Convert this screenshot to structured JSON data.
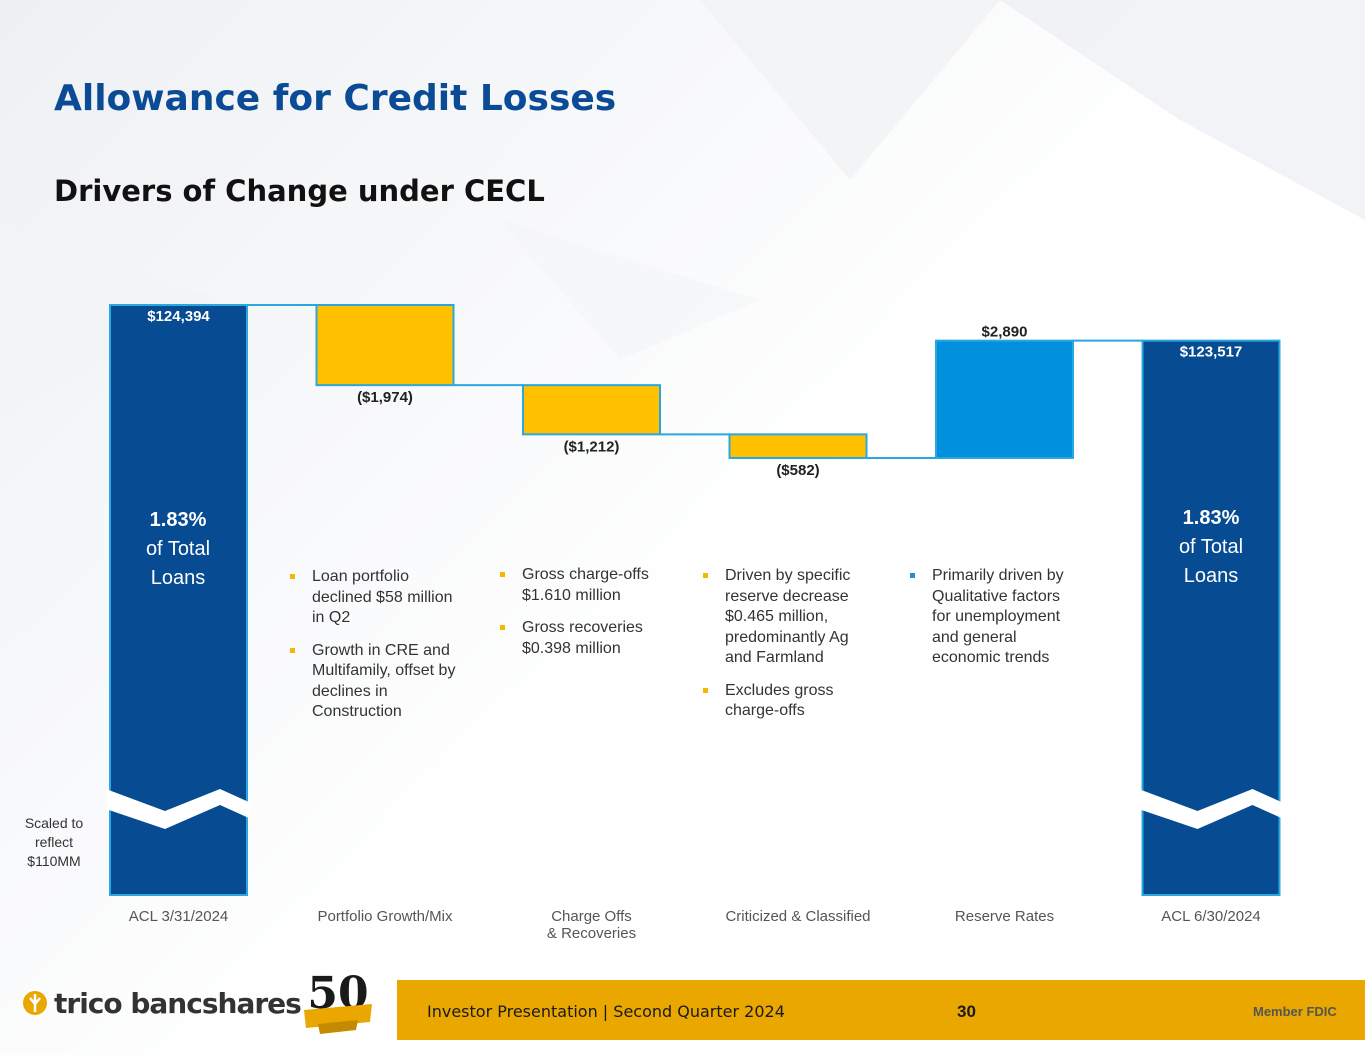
{
  "title": "Allowance for Credit Losses",
  "subtitle": "Drivers of Change under CECL",
  "scaled_note": [
    "Scaled to",
    "reflect",
    "$110MM"
  ],
  "start_pct": {
    "value": "1.83%",
    "line1": "of Total",
    "line2": "Loans"
  },
  "end_pct": {
    "value": "1.83%",
    "line1": "of Total",
    "line2": "Loans"
  },
  "bullets": {
    "portfolio": [
      "Loan portfolio declined $58 million in Q2",
      "Growth in CRE and Multifamily, offset by declines in Construction"
    ],
    "chargeoffs": [
      "Gross charge-offs $1.610 million",
      "Gross recoveries $0.398 million"
    ],
    "criticized": [
      "Driven by specific reserve decrease $0.465 million, predominantly Ag and Farmland",
      "Excludes gross charge-offs"
    ],
    "reserve": [
      "Primarily driven by Qualitative factors for unemployment and general economic trends"
    ]
  },
  "chart_data": {
    "type": "bar",
    "subtype": "waterfall",
    "categories": [
      "ACL  3/31/2024",
      "Portfolio Growth/Mix",
      "Charge Offs\n& Recoveries",
      "Criticized & Classified",
      "Reserve Rates",
      "ACL 6/30/2024"
    ],
    "values": [
      124394,
      -1974,
      -1212,
      -582,
      2890,
      123517
    ],
    "kinds": [
      "total",
      "change",
      "change",
      "change",
      "change",
      "total"
    ],
    "data_labels": [
      "$124,394",
      "($1,974)",
      "($1,212)",
      "($582)",
      "$2,890",
      "$123,517"
    ],
    "axis_break": "Scaled to reflect $110MM",
    "colors": {
      "total": "#074b93",
      "decrease": "#ffc000",
      "increase": "#0090dd",
      "outline": "#29a8e0"
    }
  },
  "footer": {
    "logo_text": "trico bancshares",
    "badge_number": "50",
    "presentation": "Investor Presentation  |  Second Quarter 2024",
    "page_number": "30",
    "member": "Member FDIC"
  }
}
